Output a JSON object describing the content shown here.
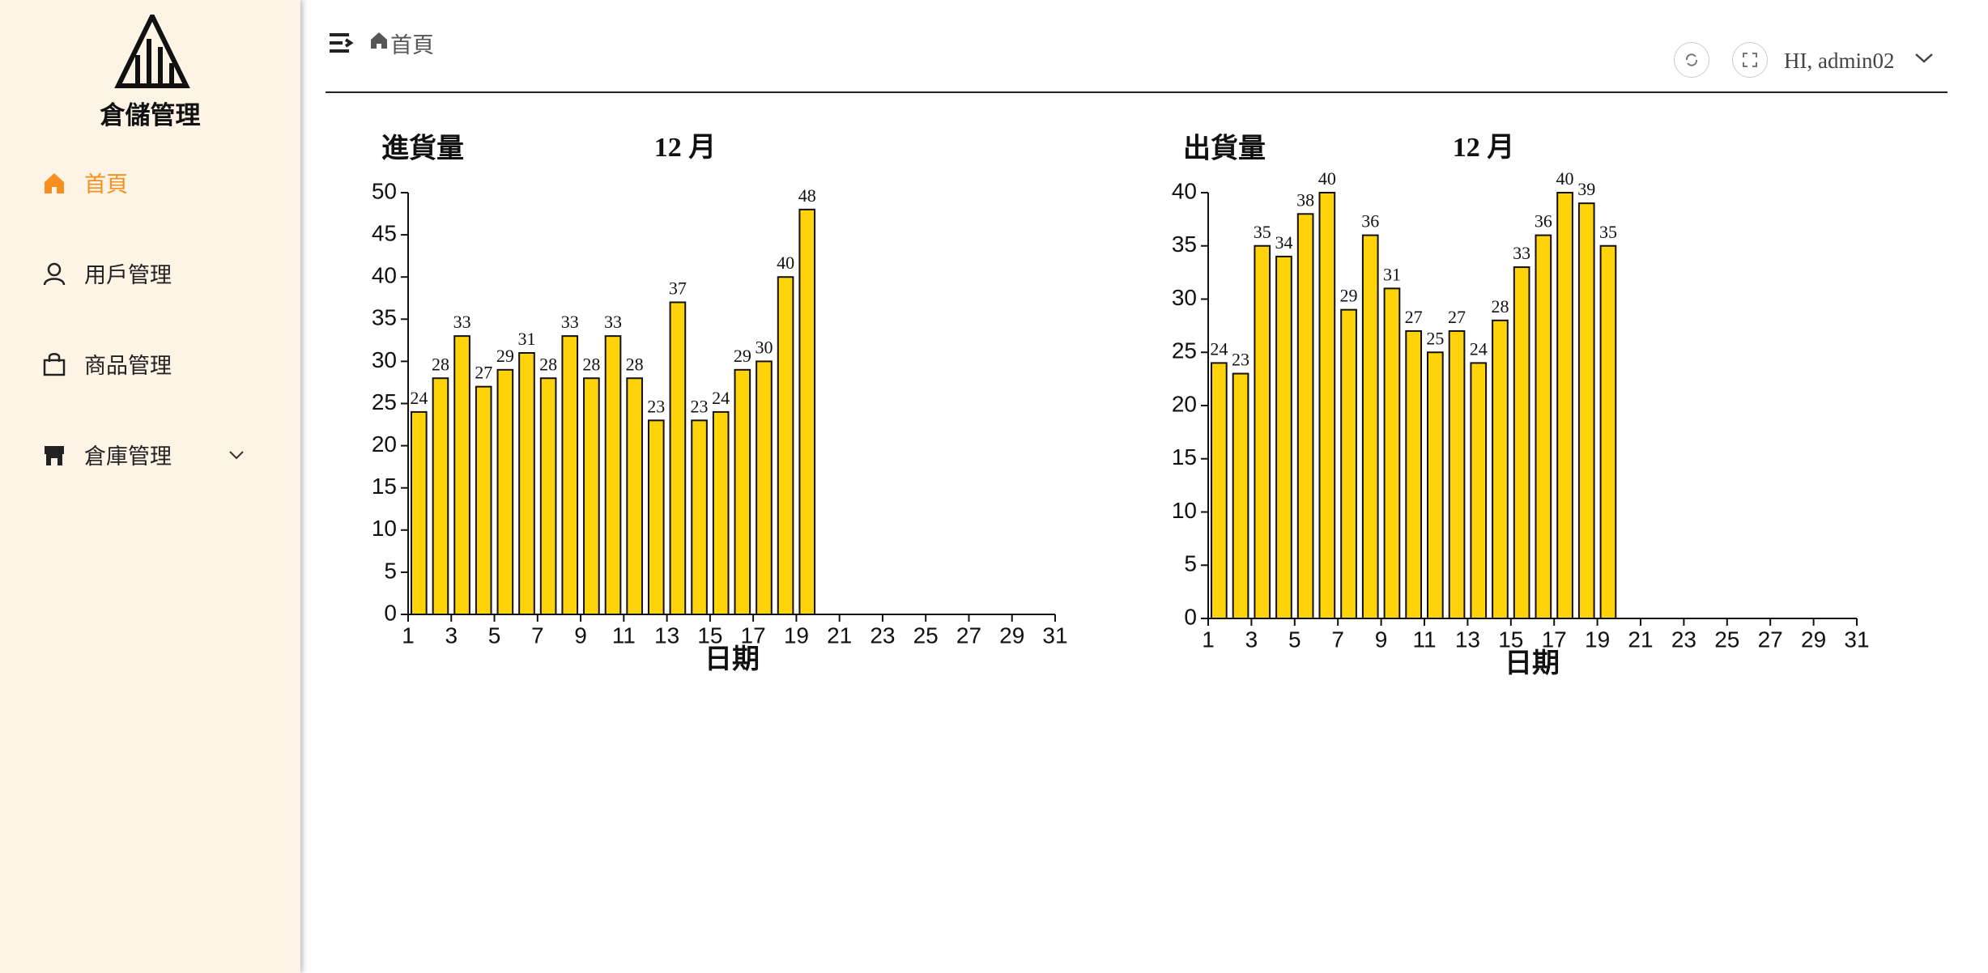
{
  "sidebar": {
    "brand": "倉儲管理",
    "menu": [
      "首頁",
      "用戶管理",
      "商品管理",
      "倉庫管理"
    ]
  },
  "header": {
    "breadcrumb": "首頁",
    "user": "HI, admin02"
  },
  "chart_data": [
    {
      "type": "bar",
      "title": "進貨量",
      "subtitle": "12 月",
      "x_label": "日期",
      "color": "#ffd30a",
      "x": [
        1,
        2,
        3,
        4,
        5,
        6,
        7,
        8,
        9,
        10,
        11,
        12,
        13,
        14,
        15,
        16,
        17,
        18,
        19
      ],
      "values": [
        24,
        28,
        33,
        27,
        29,
        31,
        28,
        33,
        28,
        33,
        28,
        23,
        37,
        23,
        24,
        29,
        30,
        40,
        48
      ],
      "xlim": [
        1,
        31
      ],
      "xticks": [
        1,
        3,
        5,
        7,
        9,
        11,
        13,
        15,
        17,
        19,
        21,
        23,
        25,
        27,
        29,
        31
      ],
      "ylim": [
        0,
        50
      ],
      "yticks": [
        0,
        5,
        10,
        15,
        20,
        25,
        30,
        35,
        40,
        45,
        50
      ]
    },
    {
      "type": "bar",
      "title": "出貨量",
      "subtitle": "12 月",
      "x_label": "日期",
      "color": "#ffd30a",
      "x": [
        1,
        2,
        3,
        4,
        5,
        6,
        7,
        8,
        9,
        10,
        11,
        12,
        13,
        14,
        15,
        16,
        17,
        18,
        19
      ],
      "values": [
        24,
        23,
        35,
        34,
        38,
        40,
        29,
        36,
        31,
        27,
        25,
        27,
        24,
        28,
        33,
        36,
        40,
        39,
        35
      ],
      "xlim": [
        1,
        31
      ],
      "xticks": [
        1,
        3,
        5,
        7,
        9,
        11,
        13,
        15,
        17,
        19,
        21,
        23,
        25,
        27,
        29,
        31
      ],
      "ylim": [
        0,
        40
      ],
      "yticks": [
        0,
        5,
        10,
        15,
        20,
        25,
        30,
        35,
        40
      ]
    }
  ]
}
